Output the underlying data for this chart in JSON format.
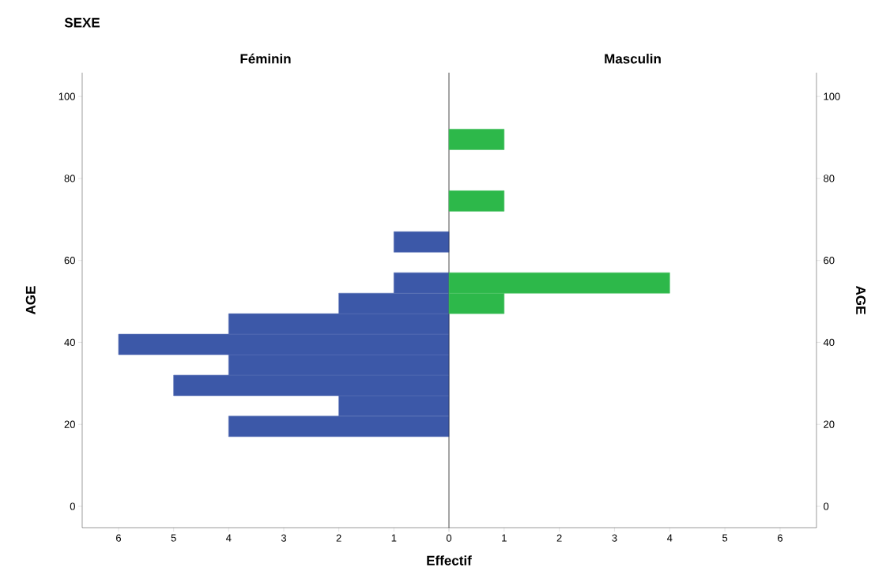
{
  "chart_data": [
    {
      "type": "histogram",
      "orientation": "horizontal",
      "title": "Féminin",
      "xlabel": "Effectif",
      "ylabel": "AGE",
      "annotations": [
        "SEXE"
      ],
      "color": "#3c58a8",
      "bins": [
        17,
        22,
        27,
        32,
        37,
        42,
        47,
        52,
        57,
        62,
        67,
        72,
        77,
        82,
        87,
        92
      ],
      "values": [
        4,
        2,
        5,
        4,
        6,
        4,
        2,
        1,
        0,
        1,
        0,
        0,
        0,
        0,
        0
      ],
      "xlim": [
        6.66,
        0
      ],
      "xticks": [
        {
          "value": 0,
          "label": null
        },
        1,
        2,
        3,
        4,
        5,
        6
      ],
      "ylim": [
        -5.2,
        105.8
      ],
      "yticks": [
        0,
        20,
        40,
        60,
        80,
        100
      ]
    },
    {
      "type": "histogram",
      "orientation": "horizontal",
      "title": "Masculin",
      "ylabel": "AGE",
      "color": "#2db84a",
      "bins": [
        17,
        22,
        27,
        32,
        37,
        42,
        47,
        52,
        57,
        62,
        67,
        72,
        77,
        82,
        87,
        92
      ],
      "values": [
        0,
        0,
        0,
        0,
        0,
        0,
        1,
        4,
        0,
        0,
        0,
        1,
        0,
        0,
        1
      ],
      "xlim": [
        0,
        6.66
      ],
      "xticks": [
        0,
        1,
        2,
        3,
        4,
        5,
        6
      ],
      "ylim": [
        -5.2,
        105.8
      ],
      "yticks": [
        0,
        20,
        40,
        60,
        80,
        100
      ]
    }
  ]
}
